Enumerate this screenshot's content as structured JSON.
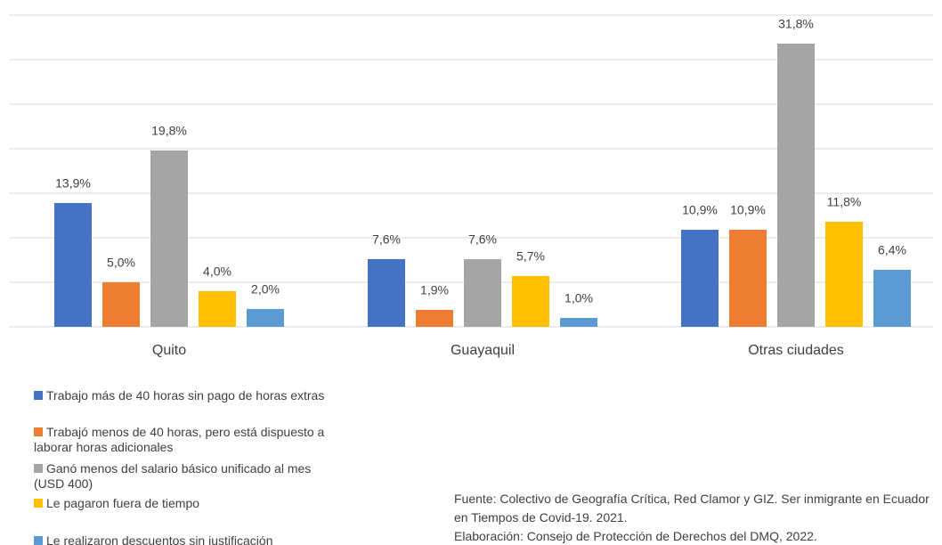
{
  "chart_data": {
    "type": "bar",
    "categories": [
      "Quito",
      "Guayaquil",
      "Otras ciudades"
    ],
    "series": [
      {
        "name": "Trabajo más de 40 horas sin pago de horas extras",
        "color": "#4472c4",
        "values": [
          13.9,
          7.6,
          10.9
        ],
        "value_labels": [
          "13,9%",
          "7,6%",
          "10,9%"
        ]
      },
      {
        "name": "Trabajó menos de 40 horas, pero está dispuesto a laborar horas adicionales",
        "color": "#ed7d31",
        "values": [
          5.0,
          1.9,
          10.9
        ],
        "value_labels": [
          "5,0%",
          "1,9%",
          "10,9%"
        ]
      },
      {
        "name": "Ganó menos del salario básico unificado al mes (USD 400)",
        "color": "#a5a5a5",
        "values": [
          19.8,
          7.6,
          31.8
        ],
        "value_labels": [
          "19,8%",
          "7,6%",
          "31,8%"
        ]
      },
      {
        "name": "Le pagaron fuera de tiempo",
        "color": "#ffc000",
        "values": [
          4.0,
          5.7,
          11.8
        ],
        "value_labels": [
          "4,0%",
          "5,7%",
          "11,8%"
        ]
      },
      {
        "name": "Le realizaron descuentos sin justificación",
        "color": "#5b9bd5",
        "values": [
          2.0,
          1.0,
          6.4
        ],
        "value_labels": [
          "2,0%",
          "1,0%",
          "6,4%"
        ]
      }
    ],
    "ylim": [
      0,
      35
    ],
    "yticks": [
      0,
      5,
      10,
      15,
      20,
      25,
      30,
      35
    ],
    "grid": true,
    "notes": [
      "Fuente: Colectivo de Geografía Crítica, Red Clamor y GIZ. Ser inmigrante en Ecuador en Tiempos de Covid-19. 2021.",
      "Elaboración: Consejo de Protección de Derechos del DMQ, 2022."
    ]
  }
}
